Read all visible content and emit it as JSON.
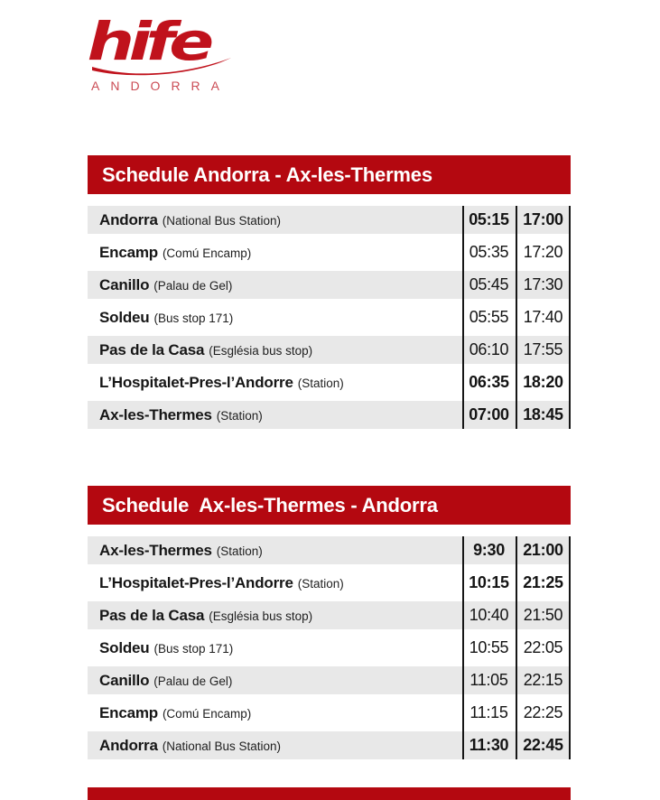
{
  "logo": {
    "brand": "hife",
    "region": "ANDORRA"
  },
  "colors": {
    "header_red": "#b40810",
    "logo_red": "#c0121c",
    "row_gray": "#e8e8e8",
    "text_black": "#161616"
  },
  "tables": [
    {
      "title": "Schedule Andorra - Ax-les-Thermes",
      "rows": [
        {
          "station": "Andorra",
          "detail": "(National Bus Station)",
          "times": [
            "05:15",
            "17:00"
          ],
          "bold": true
        },
        {
          "station": "Encamp",
          "detail": "(Comú Encamp)",
          "times": [
            "05:35",
            "17:20"
          ],
          "bold": false
        },
        {
          "station": "Canillo",
          "detail": "(Palau de Gel)",
          "times": [
            "05:45",
            "17:30"
          ],
          "bold": false
        },
        {
          "station": "Soldeu",
          "detail": "(Bus stop 171)",
          "times": [
            "05:55",
            "17:40"
          ],
          "bold": false
        },
        {
          "station": "Pas de la Casa",
          "detail": "(Església bus stop)",
          "times": [
            "06:10",
            "17:55"
          ],
          "bold": false
        },
        {
          "station": "L’Hospitalet-Pres-l’Andorre",
          "detail": "(Station)",
          "times": [
            "06:35",
            "18:20"
          ],
          "bold": true
        },
        {
          "station": "Ax-les-Thermes",
          "detail": "(Station)",
          "times": [
            "07:00",
            "18:45"
          ],
          "bold": true
        }
      ]
    },
    {
      "title": "Schedule  Ax-les-Thermes - Andorra",
      "rows": [
        {
          "station": "Ax-les-Thermes",
          "detail": "(Station)",
          "times": [
            "9:30",
            "21:00"
          ],
          "bold": true
        },
        {
          "station": "L’Hospitalet-Pres-l’Andorre",
          "detail": "(Station)",
          "times": [
            "10:15",
            "21:25"
          ],
          "bold": true
        },
        {
          "station": "Pas de la Casa",
          "detail": "(Església bus stop)",
          "times": [
            "10:40",
            "21:50"
          ],
          "bold": false
        },
        {
          "station": "Soldeu",
          "detail": "(Bus stop 171)",
          "times": [
            "10:55",
            "22:05"
          ],
          "bold": false
        },
        {
          "station": "Canillo",
          "detail": "(Palau de Gel)",
          "times": [
            "11:05",
            "22:15"
          ],
          "bold": false
        },
        {
          "station": "Encamp",
          "detail": "(Comú Encamp)",
          "times": [
            "11:15",
            "22:25"
          ],
          "bold": false
        },
        {
          "station": "Andorra",
          "detail": "(National Bus Station)",
          "times": [
            "11:30",
            "22:45"
          ],
          "bold": true
        }
      ]
    }
  ]
}
